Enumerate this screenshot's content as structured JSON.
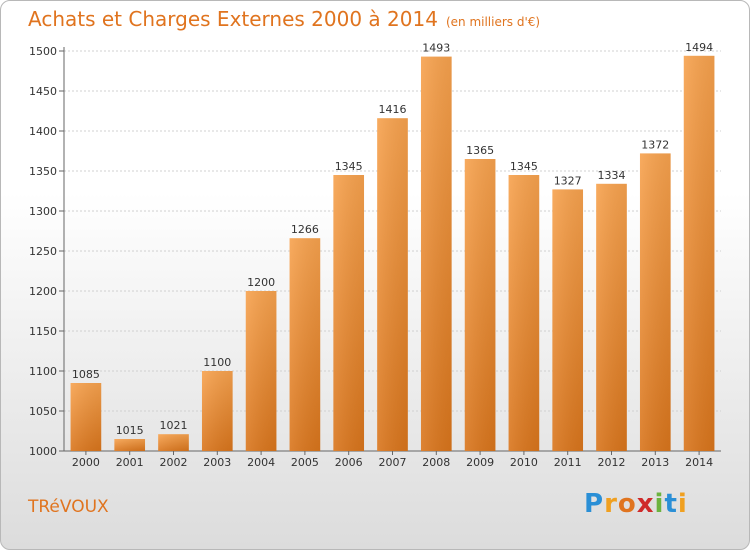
{
  "chart_data": {
    "type": "bar",
    "title": "Achats et Charges Externes 2000 à 2014",
    "subtitle": "(en milliers d'€)",
    "categories": [
      "2000",
      "2001",
      "2002",
      "2003",
      "2004",
      "2005",
      "2006",
      "2007",
      "2008",
      "2009",
      "2010",
      "2011",
      "2012",
      "2013",
      "2014"
    ],
    "values": [
      1085,
      1015,
      1021,
      1100,
      1200,
      1266,
      1345,
      1416,
      1493,
      1365,
      1345,
      1327,
      1334,
      1372,
      1494
    ],
    "ylim": [
      1000,
      1500
    ],
    "yticks": [
      1000,
      1050,
      1100,
      1150,
      1200,
      1250,
      1300,
      1350,
      1400,
      1450,
      1500
    ],
    "grid": true,
    "bar_color": "#f2913a"
  },
  "commune": "TRéVOUX",
  "logo": {
    "text": "Proxiti",
    "letters": [
      "P",
      "r",
      "o",
      "x",
      "i",
      "t",
      "i"
    ]
  }
}
